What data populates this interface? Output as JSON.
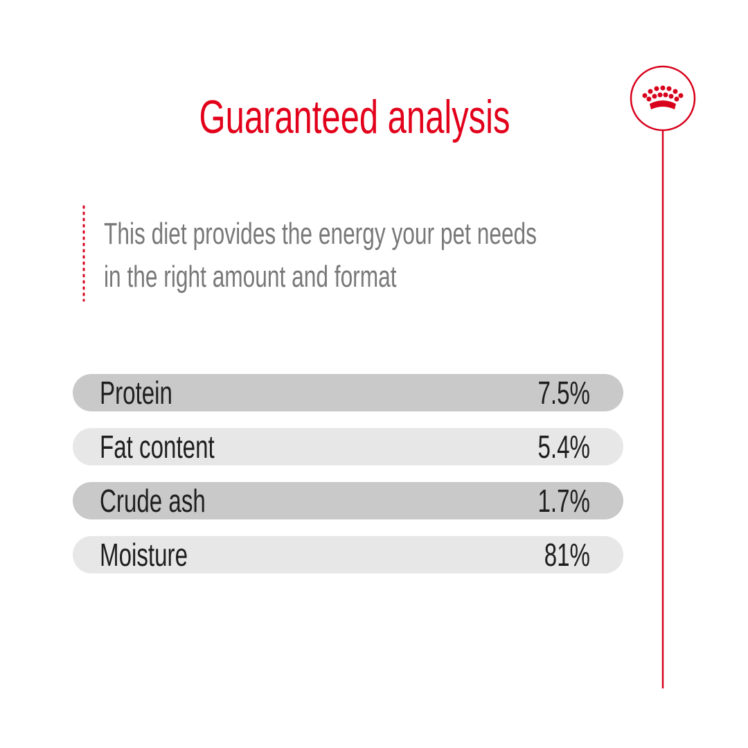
{
  "header": {
    "title": "Guaranteed analysis"
  },
  "description": {
    "lines": [
      "This diet provides the energy your pet needs",
      "in the right amount and format"
    ]
  },
  "table": {
    "rows": [
      [
        "Protein",
        "7.5%"
      ],
      [
        "Fat content",
        "5.4%"
      ],
      [
        "Crude ash",
        "1.7%"
      ],
      [
        "Moisture",
        "81%"
      ]
    ]
  }
}
